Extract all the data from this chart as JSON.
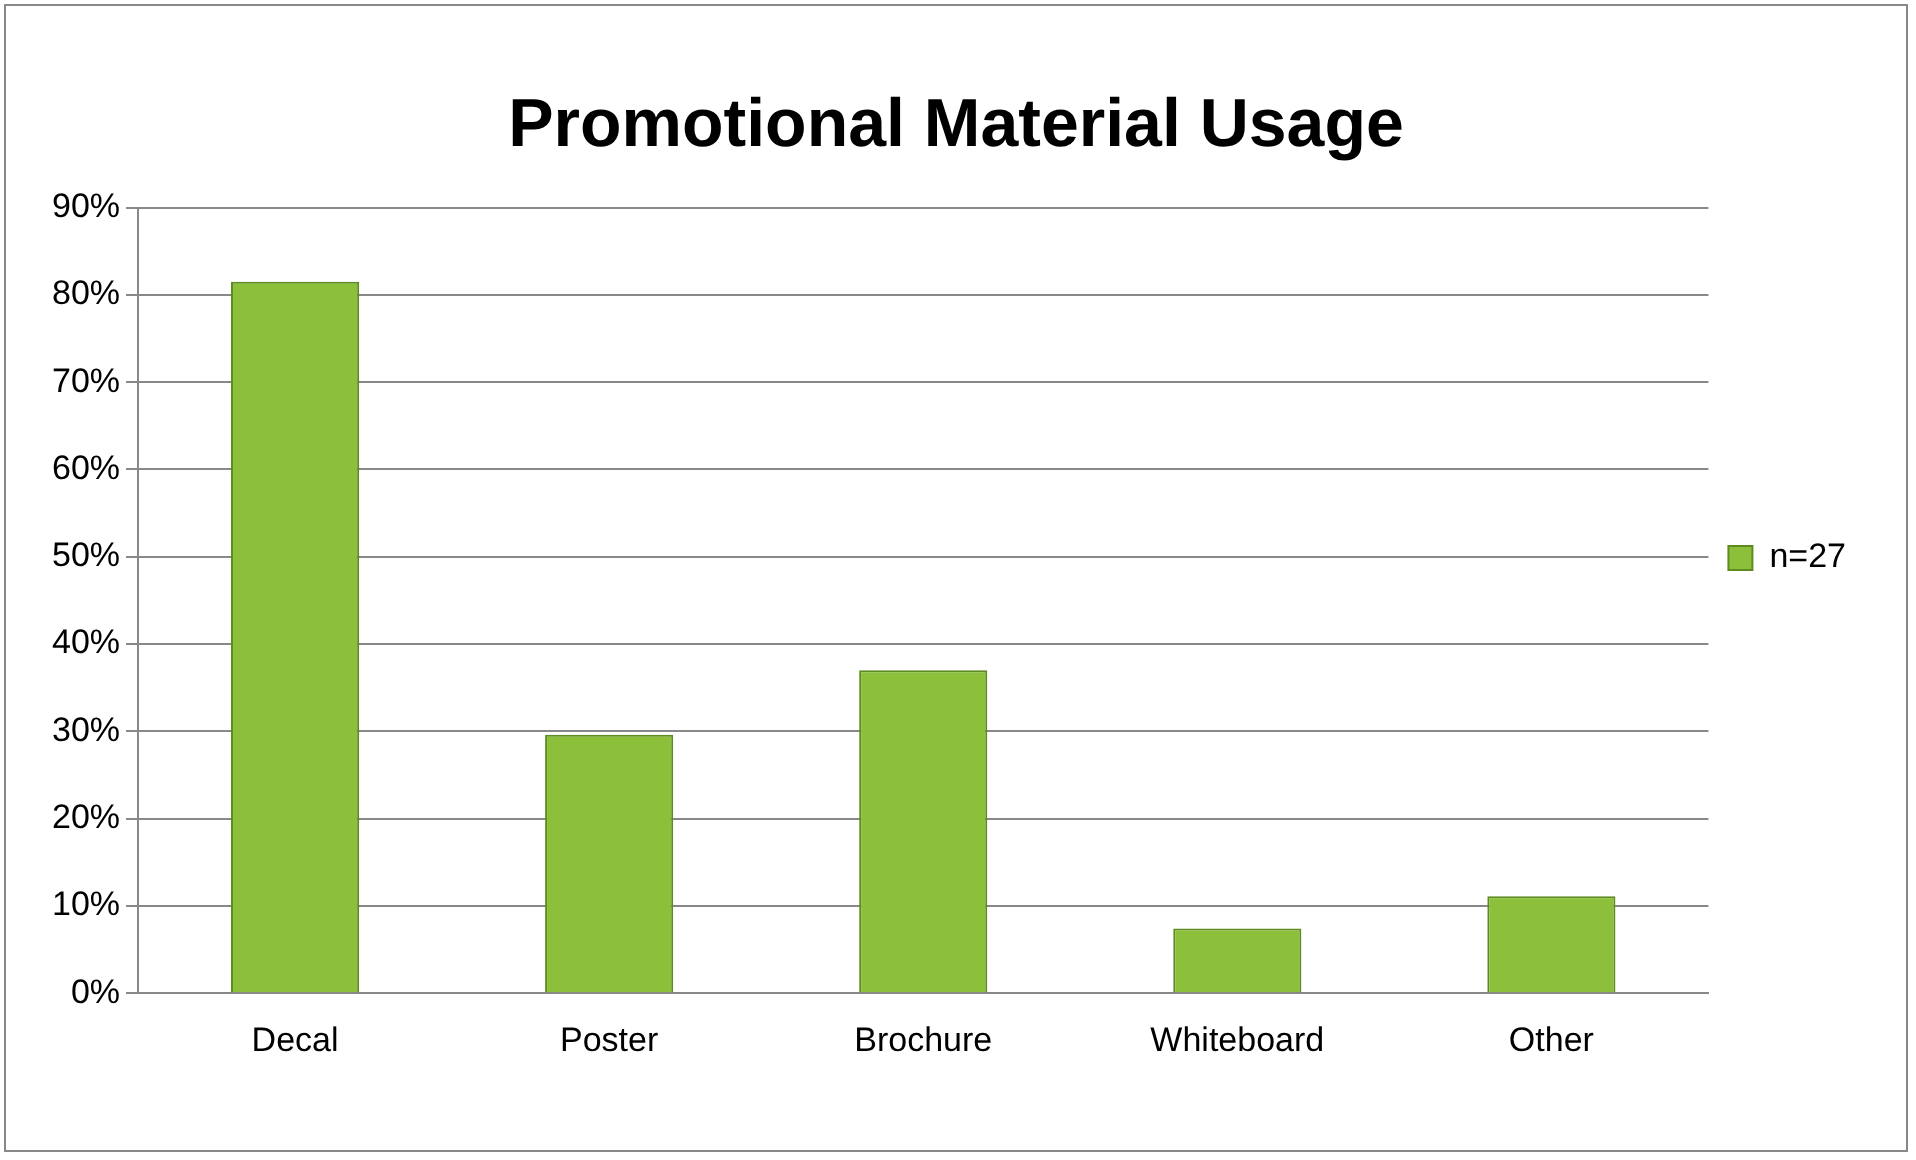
{
  "chart_data": {
    "type": "bar",
    "title": "Promotional Material Usage",
    "categories": [
      "Decal",
      "Poster",
      "Brochure",
      "Whiteboard",
      "Other"
    ],
    "series": [
      {
        "name": "n=27",
        "color": "#8cbf3a",
        "values": [
          81.5,
          29.6,
          37.0,
          7.4,
          11.1
        ]
      }
    ],
    "ylim": [
      0,
      90
    ],
    "yticks": [
      {
        "value": 0,
        "label": "0%"
      },
      {
        "value": 10,
        "label": "10%"
      },
      {
        "value": 20,
        "label": "20%"
      },
      {
        "value": 30,
        "label": "30%"
      },
      {
        "value": 40,
        "label": "40%"
      },
      {
        "value": 50,
        "label": "50%"
      },
      {
        "value": 60,
        "label": "60%"
      },
      {
        "value": 70,
        "label": "70%"
      },
      {
        "value": 80,
        "label": "80%"
      },
      {
        "value": 90,
        "label": "90%"
      }
    ],
    "grid": "y",
    "legend": "right"
  }
}
